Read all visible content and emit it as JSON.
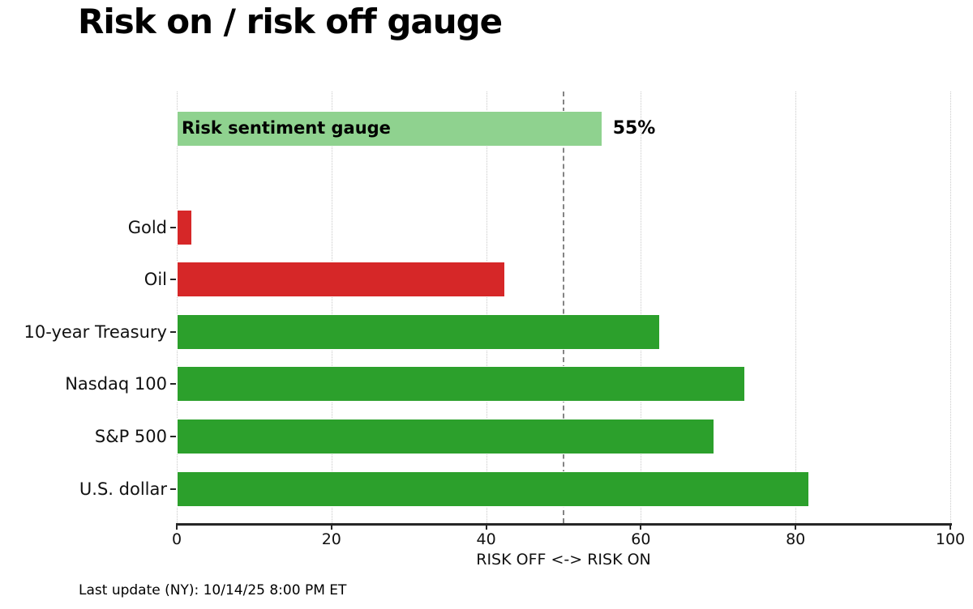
{
  "page": {
    "background": "#ffffff"
  },
  "chart_data": {
    "type": "bar",
    "orientation": "horizontal",
    "title": "Risk on / risk off gauge",
    "xlabel": "RISK OFF <-> RISK ON",
    "xlim": [
      0,
      100
    ],
    "xticks": [
      0,
      20,
      40,
      60,
      80,
      100
    ],
    "grid": "dotted vertical gridlines at each x tick",
    "reference_line_x": 50,
    "gauge": {
      "label": "Risk sentiment gauge",
      "value": 55,
      "value_label": "55%",
      "color": "#8fd28f"
    },
    "categories": [
      "Gold",
      "Oil",
      "10-year Treasury",
      "Nasdaq 100",
      "S&P 500",
      "U.S. dollar"
    ],
    "values": [
      2,
      42.5,
      62.5,
      73.5,
      69.5,
      81.8
    ],
    "bar_colors": [
      "#d62728",
      "#d62728",
      "#2ca02c",
      "#2ca02c",
      "#2ca02c",
      "#2ca02c"
    ],
    "colors": {
      "risk_off_red": "#d62728",
      "risk_on_green": "#2ca02c",
      "gauge_green": "#8fd28f",
      "reference_line": "#848484",
      "axis": "#262626",
      "grid": "#c9c9c9"
    },
    "footnote": "Last update (NY): 10/14/25 8:00 PM ET"
  }
}
